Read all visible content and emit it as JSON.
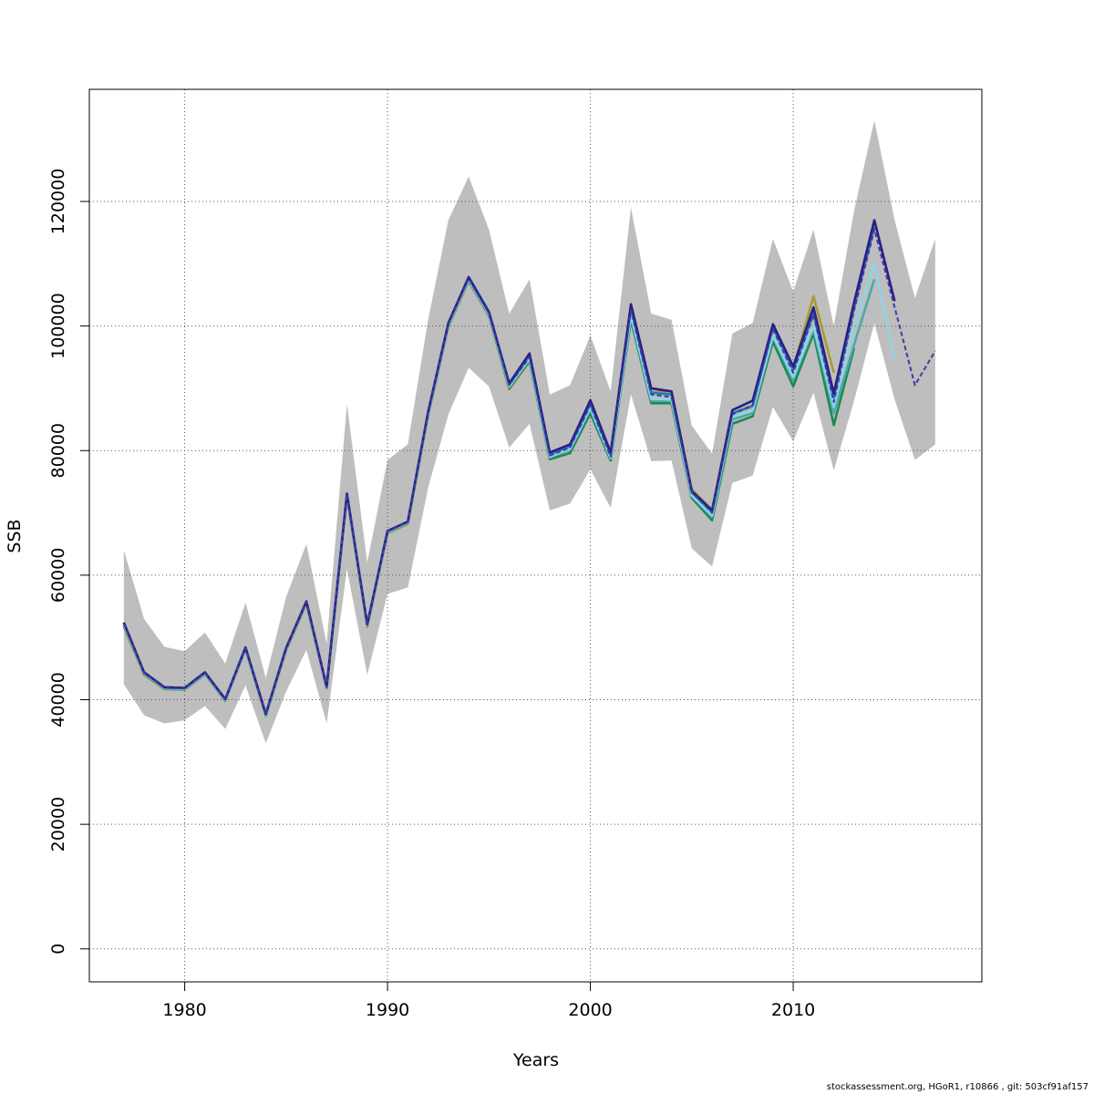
{
  "chart_data": {
    "type": "line",
    "xlabel": "Years",
    "ylabel": "SSB",
    "xlim": [
      1975.3,
      2019.3
    ],
    "ylim": [
      -5300,
      138000
    ],
    "xticks": [
      1980,
      1990,
      2000,
      2010
    ],
    "yticks": [
      0,
      20000,
      40000,
      60000,
      80000,
      100000,
      120000
    ],
    "grid": true,
    "band_color": "#bebebe",
    "band": {
      "x": [
        1977,
        1978,
        1979,
        1980,
        1981,
        1982,
        1983,
        1984,
        1985,
        1986,
        1987,
        1988,
        1989,
        1990,
        1991,
        1992,
        1993,
        1994,
        1995,
        1996,
        1997,
        1998,
        1999,
        2000,
        2001,
        2002,
        2003,
        2004,
        2005,
        2006,
        2007,
        2008,
        2009,
        2010,
        2011,
        2012,
        2013,
        2014,
        2015,
        2016,
        2017
      ],
      "upper": [
        64000,
        53000,
        48500,
        47800,
        50800,
        45800,
        55600,
        43500,
        56500,
        65000,
        49000,
        87500,
        62000,
        78500,
        81000,
        101000,
        117000,
        124000,
        115500,
        102000,
        107500,
        89000,
        90500,
        98500,
        89500,
        119000,
        102000,
        101000,
        84000,
        79500,
        98800,
        100500,
        114000,
        105500,
        115500,
        100000,
        118500,
        133000,
        117000,
        104500,
        114000
      ],
      "lower": [
        42500,
        37500,
        36200,
        36700,
        39000,
        35300,
        42300,
        33000,
        41300,
        48000,
        36200,
        61000,
        44000,
        57000,
        58000,
        74000,
        85800,
        93300,
        90300,
        80500,
        84300,
        70400,
        71500,
        77000,
        70800,
        89000,
        78300,
        78400,
        64300,
        61400,
        74800,
        76000,
        87000,
        81500,
        89300,
        76800,
        88000,
        100500,
        88200,
        78500,
        81000
      ]
    },
    "series": [
      {
        "color": "#3d3d9e",
        "dash": true,
        "x": [
          1977,
          1978,
          1979,
          1980,
          1981,
          1982,
          1983,
          1984,
          1985,
          1986,
          1987,
          1988,
          1989,
          1990,
          1991,
          1992,
          1993,
          1994,
          1995,
          1996,
          1997,
          1998,
          1999,
          2000,
          2001,
          2002,
          2003,
          2004,
          2005,
          2006,
          2007,
          2008,
          2009,
          2010,
          2011,
          2012,
          2013,
          2014,
          2015,
          2016,
          2017
        ],
        "y": [
          52200,
          44300,
          41900,
          41800,
          44300,
          40000,
          48300,
          37600,
          48200,
          55700,
          42000,
          73000,
          52000,
          67000,
          68500,
          86000,
          100300,
          107600,
          102000,
          90500,
          95000,
          79200,
          80500,
          87300,
          79000,
          102500,
          89000,
          88600,
          73300,
          70000,
          85800,
          87300,
          99500,
          92500,
          101800,
          87800,
          102500,
          115500,
          103000,
          90500,
          96000
        ]
      },
      {
        "color": "#2a1e82",
        "dash": false,
        "x": [
          1977,
          1978,
          1979,
          1980,
          1981,
          1982,
          1983,
          1984,
          1985,
          1986,
          1987,
          1988,
          1989,
          1990,
          1991,
          1992,
          1993,
          1994,
          1995,
          1996,
          1997,
          1998,
          1999,
          2000,
          2001,
          2002,
          2003,
          2004,
          2005,
          2006,
          2007,
          2008,
          2009,
          2010,
          2011,
          2012,
          2013,
          2014,
          2015
        ],
        "y": [
          52400,
          44400,
          42000,
          41900,
          44400,
          40100,
          48400,
          37700,
          48300,
          55800,
          42100,
          73100,
          52100,
          67100,
          68600,
          86200,
          100500,
          107800,
          102200,
          90800,
          95600,
          79700,
          81000,
          88100,
          79700,
          103500,
          90000,
          89500,
          73500,
          70400,
          86500,
          88000,
          100300,
          93500,
          103000,
          89200,
          103800,
          117000,
          104000
        ]
      },
      {
        "color": "#1e7ac8",
        "dash": false,
        "x": [
          1977,
          1978,
          1979,
          1980,
          1981,
          1982,
          1983,
          1984,
          1985,
          1986,
          1987,
          1988,
          1989,
          1990,
          1991,
          1992,
          1993,
          1994,
          1995,
          1996,
          1997,
          1998,
          1999,
          2000,
          2001,
          2002,
          2003,
          2004,
          2005,
          2006,
          2007,
          2008,
          2009,
          2010,
          2011,
          2012,
          2013,
          2014
        ],
        "y": [
          52300,
          44350,
          41950,
          41850,
          44350,
          40050,
          48350,
          37650,
          48250,
          55750,
          42050,
          73050,
          52050,
          67050,
          68550,
          86100,
          100400,
          107900,
          102300,
          90600,
          95300,
          79400,
          80700,
          87600,
          79300,
          103000,
          89300,
          89000,
          73300,
          70100,
          86000,
          87200,
          99800,
          93000,
          102000,
          88500,
          103000,
          116000
        ]
      },
      {
        "color": "#8fd3e6",
        "dash": false,
        "x": [
          1977,
          1978,
          1979,
          1980,
          1981,
          1982,
          1983,
          1984,
          1985,
          1986,
          1987,
          1988,
          1989,
          1990,
          1991,
          1992,
          1993,
          1994,
          1995,
          1996,
          1997,
          1998,
          1999,
          2000,
          2001,
          2002,
          2003,
          2004,
          2005,
          2006,
          2007,
          2008,
          2009,
          2010,
          2011,
          2012,
          2013,
          2014,
          2015
        ],
        "y": [
          52100,
          44250,
          41850,
          41750,
          44250,
          39950,
          48250,
          37550,
          48150,
          55650,
          41950,
          72950,
          51950,
          66950,
          68450,
          85900,
          100200,
          107500,
          101900,
          90300,
          94800,
          79000,
          80300,
          86900,
          78800,
          101800,
          88300,
          88200,
          72800,
          69600,
          85400,
          86500,
          98500,
          91800,
          100000,
          87000,
          100000,
          110000,
          94500
        ]
      },
      {
        "color": "#4aa8a8",
        "dash": false,
        "x": [
          1977,
          1978,
          1979,
          1980,
          1981,
          1982,
          1983,
          1984,
          1985,
          1986,
          1987,
          1988,
          1989,
          1990,
          1991,
          1992,
          1993,
          1994,
          1995,
          1996,
          1997,
          1998,
          1999,
          2000,
          2001,
          2002,
          2003,
          2004,
          2005,
          2006,
          2007,
          2008,
          2009,
          2010,
          2011,
          2012,
          2013,
          2014
        ],
        "y": [
          52000,
          44200,
          41800,
          41700,
          44200,
          39900,
          48200,
          37500,
          48100,
          55600,
          41900,
          72900,
          51900,
          66900,
          68400,
          85800,
          100100,
          107400,
          101800,
          90200,
          94600,
          78900,
          80100,
          86600,
          78700,
          101500,
          88000,
          88000,
          72700,
          69300,
          85000,
          86000,
          98200,
          91300,
          99500,
          86000,
          97000,
          107500
        ]
      },
      {
        "color": "#1a8a50",
        "dash": false,
        "x": [
          1977,
          1978,
          1979,
          1980,
          1981,
          1982,
          1983,
          1984,
          1985,
          1986,
          1987,
          1988,
          1989,
          1990,
          1991,
          1992,
          1993,
          1994,
          1995,
          1996,
          1997,
          1998,
          1999,
          2000,
          2001,
          2002,
          2003,
          2004,
          2005,
          2006,
          2007,
          2008,
          2009,
          2010,
          2011,
          2012,
          2013
        ],
        "y": [
          51900,
          44100,
          41750,
          41650,
          44150,
          39850,
          48150,
          37450,
          48050,
          55550,
          41850,
          72850,
          51850,
          66850,
          68350,
          85700,
          100000,
          107300,
          101700,
          90000,
          94400,
          78600,
          79600,
          86000,
          78400,
          101000,
          87600,
          87600,
          72400,
          68800,
          84300,
          85500,
          97500,
          90300,
          98800,
          84100,
          96500
        ]
      },
      {
        "color": "#a89a3a",
        "dash": false,
        "x": [
          1977,
          1978,
          1979,
          1980,
          1981,
          1982,
          1983,
          1984,
          1985,
          1986,
          1987,
          1988,
          1989,
          1990,
          1991,
          1992,
          1993,
          1994,
          1995,
          1996,
          1997,
          1998,
          1999,
          2000,
          2001,
          2002,
          2003,
          2004,
          2005,
          2006,
          2007,
          2008,
          2009,
          2010,
          2011,
          2012
        ],
        "y": [
          51700,
          44000,
          41700,
          41600,
          44100,
          39800,
          48100,
          37400,
          47900,
          55400,
          41800,
          72700,
          51700,
          66700,
          68200,
          85600,
          99900,
          107200,
          101600,
          89800,
          94300,
          79100,
          80300,
          86700,
          79500,
          101000,
          89400,
          89500,
          73800,
          70500,
          86000,
          87000,
          100000,
          93200,
          104800,
          92500
        ]
      }
    ]
  },
  "footer": {
    "text": "stockassessment.org, HGoR1, r10866 , git: 503cf91af157"
  }
}
